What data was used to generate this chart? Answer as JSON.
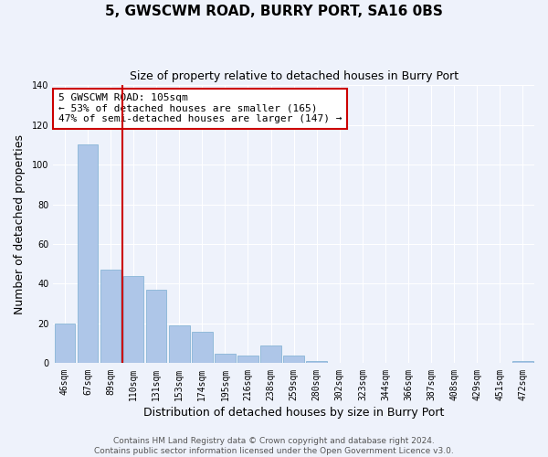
{
  "title": "5, GWSCWM ROAD, BURRY PORT, SA16 0BS",
  "subtitle": "Size of property relative to detached houses in Burry Port",
  "xlabel": "Distribution of detached houses by size in Burry Port",
  "ylabel": "Number of detached properties",
  "bar_labels": [
    "46sqm",
    "67sqm",
    "89sqm",
    "110sqm",
    "131sqm",
    "153sqm",
    "174sqm",
    "195sqm",
    "216sqm",
    "238sqm",
    "259sqm",
    "280sqm",
    "302sqm",
    "323sqm",
    "344sqm",
    "366sqm",
    "387sqm",
    "408sqm",
    "429sqm",
    "451sqm",
    "472sqm"
  ],
  "bar_values": [
    20,
    110,
    47,
    44,
    37,
    19,
    16,
    5,
    4,
    9,
    4,
    1,
    0,
    0,
    0,
    0,
    0,
    0,
    0,
    0,
    1
  ],
  "bar_color": "#aec6e8",
  "bar_edge_color": "#7aaed0",
  "vline_color": "#cc0000",
  "annotation_title": "5 GWSCWM ROAD: 105sqm",
  "annotation_line1": "← 53% of detached houses are smaller (165)",
  "annotation_line2": "47% of semi-detached houses are larger (147) →",
  "box_color": "#cc0000",
  "ylim": [
    0,
    140
  ],
  "yticks": [
    0,
    20,
    40,
    60,
    80,
    100,
    120,
    140
  ],
  "footer1": "Contains HM Land Registry data © Crown copyright and database right 2024.",
  "footer2": "Contains public sector information licensed under the Open Government Licence v3.0.",
  "bg_color": "#eef2fb",
  "grid_color": "#ffffff",
  "title_fontsize": 11,
  "subtitle_fontsize": 9,
  "axis_label_fontsize": 9,
  "tick_fontsize": 7,
  "annotation_fontsize": 8,
  "footer_fontsize": 6.5
}
